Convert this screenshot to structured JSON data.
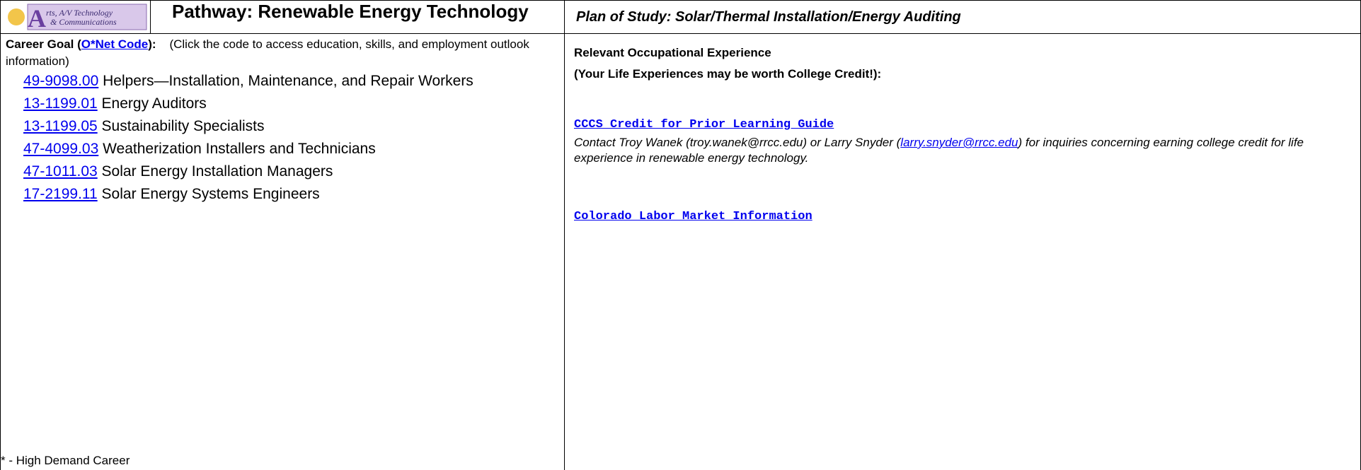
{
  "header": {
    "logo": {
      "letter": "A",
      "line1": "rts, A/V Technology",
      "line2": "& Communications"
    },
    "title": "Pathway: Renewable Energy Technology",
    "plan": "Plan of Study: Solar/Thermal Installation/Energy Auditing"
  },
  "career_goal": {
    "label": "Career Goal (",
    "link": "O*Net Code",
    "label_end": "):",
    "note": "(Click the code to access education, skills, and employment outlook information)",
    "careers": [
      {
        "code": "49-9098.00",
        "title": "Helpers—Installation, Maintenance, and Repair Workers"
      },
      {
        "code": "13-1199.01",
        "title": "Energy Auditors"
      },
      {
        "code": "13-1199.05",
        "title": "Sustainability Specialists"
      },
      {
        "code": "47-4099.03",
        "title": "Weatherization Installers and Technicians"
      },
      {
        "code": "47-1011.03",
        "title": "Solar Energy Installation Managers"
      },
      {
        "code": "17-2199.11",
        "title": "Solar Energy Systems Engineers"
      }
    ],
    "footnote": "* - High Demand Career"
  },
  "experience": {
    "heading": "Relevant Occupational Experience",
    "subheading": "(Your Life Experiences may be worth College Credit!):",
    "guide_link": "CCCS Credit for Prior Learning Guide",
    "contact_start": "Contact Troy Wanek (troy.wanek@rrcc.edu) or Larry Snyder (",
    "contact_email": "larry.snyder@rrcc.edu",
    "contact_end": ") for inquiries concerning earning college credit for life experience in renewable energy technology.",
    "labor_link": "Colorado Labor Market Information"
  }
}
